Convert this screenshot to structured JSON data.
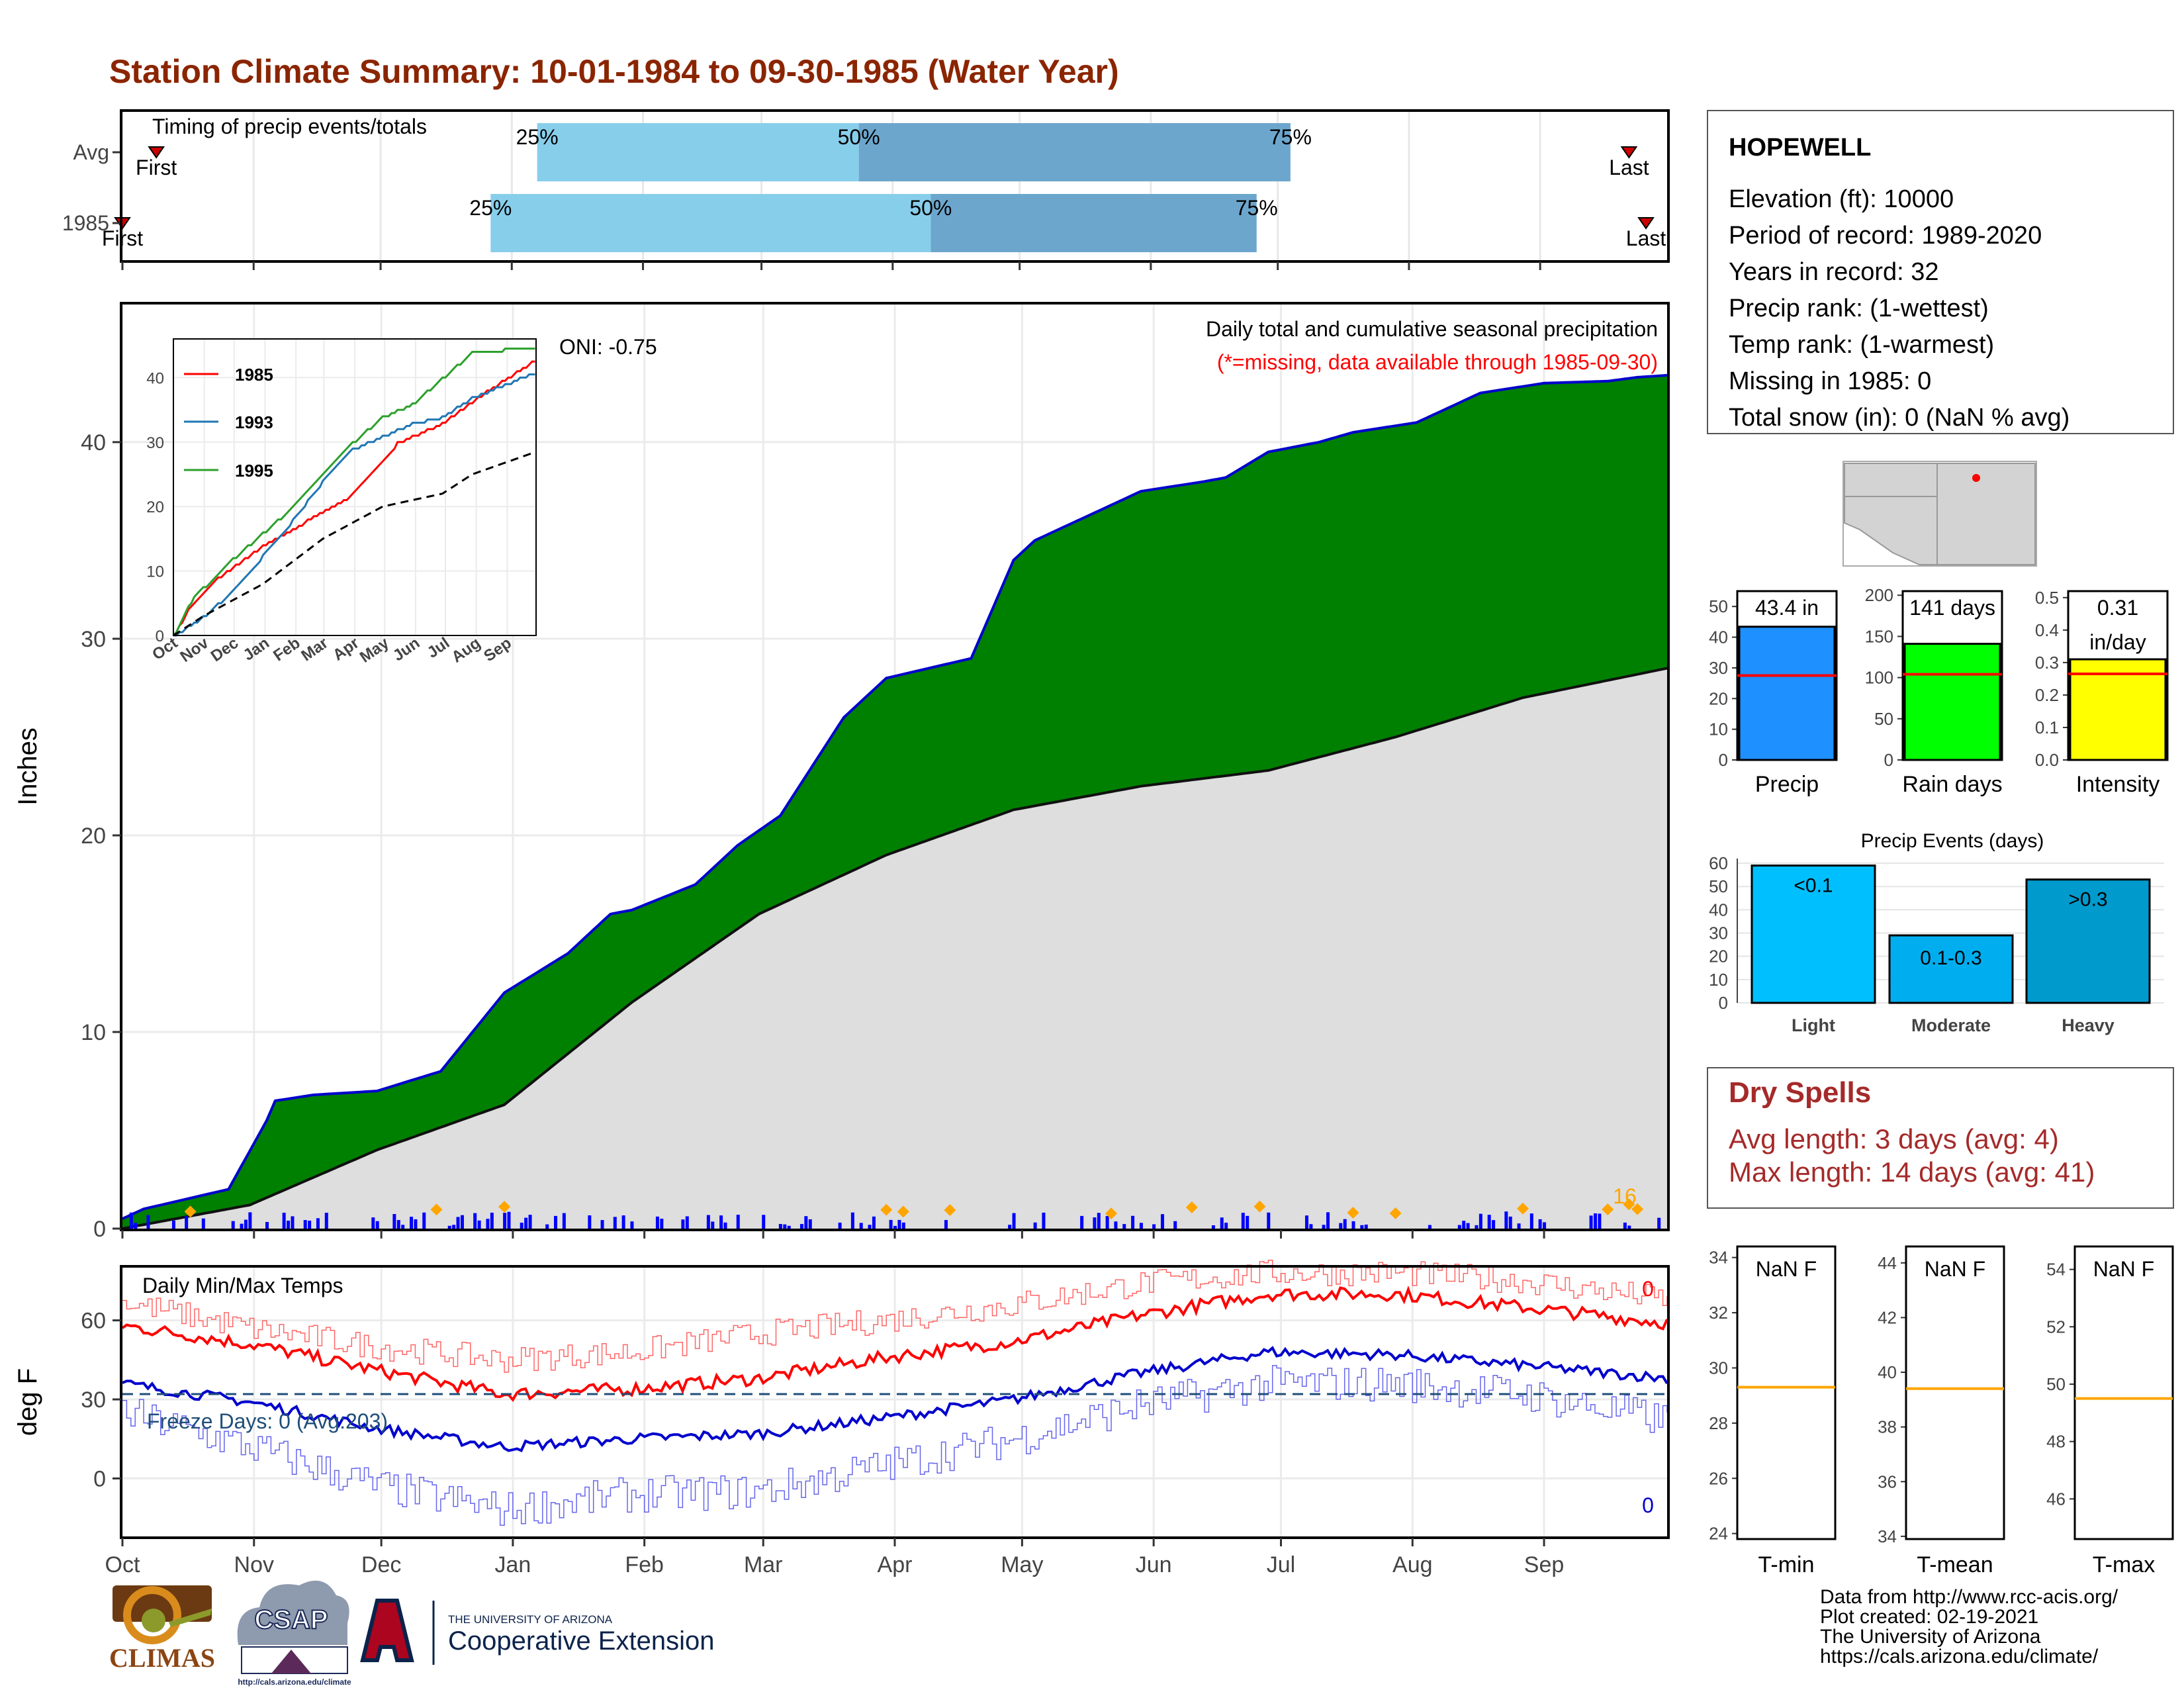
{
  "title": "Station Climate Summary: 10-01-1984 to 09-30-1985 (Water Year)",
  "colors": {
    "title": "#8B2500",
    "precip_fill": "#008000",
    "precip_line": "#0000CD",
    "avg_fill": "#DEDEDE",
    "bar_q1": "#87CEEB",
    "bar_q2": "#6CA6CD",
    "tmax": "#FF0000",
    "tmin": "#0000CD",
    "freeze": "#1F4E79",
    "missing": "#FF0000",
    "marker": "#FFA500",
    "dry": "#A52A2A"
  },
  "timing": {
    "label": "Timing of precip events/totals",
    "rows": [
      {
        "name": "Avg",
        "first_label": "First",
        "last_label": "Last",
        "first_day": 8,
        "last_day": 356,
        "p25": 98,
        "p50": 174,
        "p75": 276,
        "pct_labels": [
          "25%",
          "50%",
          "75%"
        ]
      },
      {
        "name": "1985",
        "first_label": "First",
        "last_label": "Last",
        "first_day": 0,
        "last_day": 360,
        "p25": 87,
        "p50": 191,
        "p75": 268,
        "pct_labels": [
          "25%",
          "50%",
          "75%"
        ]
      }
    ],
    "xlim": [
      0,
      365
    ]
  },
  "station": {
    "name": "HOPEWELL",
    "lines": [
      "Elevation (ft): 10000",
      "Period of record: 1989-2020",
      "Years in record: 32",
      "Precip rank:  (1-wettest)",
      "Temp rank:  (1-warmest)",
      "Missing in 1985: 0",
      "Total snow (in): 0 (NaN % avg)"
    ]
  },
  "main": {
    "ylabel": "Inches",
    "oni": "ONI: -0.75",
    "desc": "Daily total and cumulative seasonal precipitation",
    "missing_note": "(*=missing, data available through 1985-09-30)",
    "count_label": "16",
    "yticks": [
      "0",
      "10",
      "20",
      "30",
      "40"
    ],
    "xticks": [
      "Oct",
      "Nov",
      "Dec",
      "Jan",
      "Feb",
      "Mar",
      "Apr",
      "May",
      "Jun",
      "Jul",
      "Aug",
      "Sep"
    ]
  },
  "inset": {
    "legend": [
      "1985",
      "1993",
      "1995"
    ],
    "yticks": [
      "0",
      "10",
      "20",
      "30",
      "40"
    ],
    "xticks": [
      "Oct",
      "Nov",
      "Dec",
      "Jan",
      "Feb",
      "Mar",
      "Apr",
      "May",
      "Jun",
      "Jul",
      "Aug",
      "Sep"
    ]
  },
  "temps": {
    "title": "Daily Min/Max Temps",
    "ylabel": "deg F",
    "freeze": "Freeze Days: 0 (Avg:203)",
    "max_count": "0",
    "min_count": "0",
    "yticks": [
      "0",
      "30",
      "60"
    ]
  },
  "summary_bars": [
    {
      "label": "Precip",
      "value_label": "43.4 in",
      "value": 43.4,
      "avg": 27.5,
      "yticks": [
        "0",
        "10",
        "20",
        "30",
        "40",
        "50"
      ],
      "ymax": 55,
      "color": "#1E90FF"
    },
    {
      "label": "Rain days",
      "value_label": "141 days",
      "value": 141,
      "avg": 104,
      "yticks": [
        "0",
        "50",
        "100",
        "150",
        "200"
      ],
      "ymax": 205,
      "color": "#00FF00"
    },
    {
      "label": "Intensity",
      "value_label": "0.31",
      "value_label2": "in/day",
      "value": 0.31,
      "avg": 0.265,
      "yticks": [
        "0.0",
        "0.1",
        "0.2",
        "0.3",
        "0.4",
        "0.5"
      ],
      "ymax": 0.52,
      "color": "#FFFF00"
    }
  ],
  "events": {
    "title": "Precip Events (days)",
    "yticks": [
      "0",
      "10",
      "20",
      "30",
      "40",
      "50",
      "60"
    ],
    "bars": [
      {
        "label": "Light",
        "inner": "<0.1",
        "value": 59,
        "color": "#00BFFF"
      },
      {
        "label": "Moderate",
        "inner": "0.1-0.3",
        "value": 29,
        "color": "#00AEEF"
      },
      {
        "label": "Heavy",
        "inner": ">0.3",
        "value": 53,
        "color": "#009ACD"
      }
    ]
  },
  "dry": {
    "title": "Dry Spells",
    "avg_line": "Avg length: 3 days (avg: 4)",
    "max_line": "Max length: 14 days (avg: 41)"
  },
  "temp_panels": [
    {
      "label": "T-min",
      "value": "NaN F",
      "yticks": [
        "24",
        "26",
        "28",
        "30",
        "32",
        "34"
      ],
      "ymin": 23.8,
      "ymax": 34.4,
      "avg": 29.3
    },
    {
      "label": "T-mean",
      "value": "NaN F",
      "yticks": [
        "34",
        "36",
        "38",
        "40",
        "42",
        "44"
      ],
      "ymin": 33.9,
      "ymax": 44.6,
      "avg": 39.4
    },
    {
      "label": "T-max",
      "value": "NaN F",
      "yticks": [
        "46",
        "48",
        "50",
        "52",
        "54"
      ],
      "ymin": 44.6,
      "ymax": 54.8,
      "avg": 49.5
    }
  ],
  "footer": [
    "Data from http://www.rcc-acis.org/",
    "Plot created: 02-19-2021",
    "The University of Arizona",
    "https://cals.arizona.edu/climate/"
  ],
  "logos": {
    "climas": "CLIMAS",
    "csap": "CSAP",
    "csap_url": "http://cals.arizona.edu/climate",
    "ua_small": "THE UNIVERSITY OF ARIZONA",
    "ua_big": "Cooperative Extension"
  },
  "chart_data": [
    {
      "type": "area",
      "title": "Daily total and cumulative seasonal precipitation",
      "ylabel": "Inches",
      "xlabel": "",
      "ylim": [
        0,
        47
      ],
      "x_unit": "day of water year",
      "series": [
        {
          "name": "1985",
          "x": [
            0,
            5,
            25,
            34,
            36,
            45,
            60,
            75,
            90,
            105,
            115,
            120,
            135,
            145,
            155,
            170,
            180,
            190,
            200,
            210,
            215,
            225,
            240,
            255,
            260,
            270,
            282,
            290,
            305,
            320,
            335,
            350,
            357,
            364
          ],
          "y": [
            0.5,
            1.0,
            2.0,
            5.5,
            6.5,
            6.8,
            7.0,
            8.0,
            12.0,
            14.0,
            16.0,
            16.2,
            17.5,
            19.5,
            21.0,
            26.0,
            28.0,
            28.5,
            29.0,
            34.0,
            35.0,
            36.0,
            37.5,
            38.0,
            38.2,
            39.5,
            40.0,
            40.5,
            41.0,
            42.5,
            43.0,
            43.1,
            43.3,
            43.4
          ]
        },
        {
          "name": "Average",
          "x": [
            0,
            30,
            60,
            90,
            120,
            150,
            180,
            210,
            240,
            270,
            300,
            330,
            364
          ],
          "y": [
            0,
            1.2,
            4.0,
            6.3,
            11.5,
            16.0,
            19.0,
            21.3,
            22.5,
            23.3,
            25.0,
            27.0,
            28.5
          ]
        }
      ]
    },
    {
      "type": "line",
      "title": "",
      "ylim": [
        0,
        46
      ],
      "series": [
        {
          "name": "1985",
          "x": [
            0,
            15,
            45,
            90,
            135,
            180,
            225,
            270,
            315,
            364
          ],
          "y": [
            0,
            4,
            9,
            14,
            18,
            22,
            30,
            33,
            38,
            43
          ]
        },
        {
          "name": "1993",
          "x": [
            0,
            30,
            60,
            120,
            150,
            180,
            210,
            240,
            270,
            300,
            364
          ],
          "y": [
            0,
            3,
            7,
            18,
            24,
            29,
            31,
            33,
            34,
            37,
            41
          ]
        },
        {
          "name": "1995",
          "x": [
            0,
            20,
            60,
            90,
            120,
            150,
            180,
            210,
            240,
            270,
            300,
            364
          ],
          "y": [
            0,
            6,
            12,
            16,
            20,
            25,
            30,
            34,
            36,
            40,
            44,
            45
          ]
        },
        {
          "name": "",
          "x": [
            0,
            30,
            90,
            150,
            210,
            240,
            270,
            300,
            364
          ],
          "y": [
            0,
            3,
            8,
            15,
            20,
            21,
            22,
            25,
            28.5
          ]
        }
      ]
    },
    {
      "type": "line",
      "title": "Daily Min/Max Temps",
      "ylabel": "deg F",
      "ylim": [
        -22,
        80
      ],
      "x": [
        0,
        30,
        60,
        90,
        120,
        150,
        180,
        210,
        240,
        270,
        300,
        330,
        364
      ],
      "series": [
        {
          "name": "Avg Max",
          "y": [
            58,
            51,
            41,
            32,
            34,
            38,
            46,
            52,
            62,
            70,
            70,
            65,
            59
          ]
        },
        {
          "name": "Avg Min",
          "y": [
            36,
            29,
            19,
            12,
            15,
            17,
            23,
            30,
            40,
            48,
            47,
            43,
            38
          ]
        },
        {
          "name": "Daily Max",
          "y": [
            67,
            57,
            50,
            45,
            48,
            55,
            60,
            66,
            74,
            78,
            78,
            75,
            68
          ]
        },
        {
          "name": "Daily Min",
          "y": [
            25,
            12,
            -3,
            -12,
            -6,
            -5,
            5,
            15,
            28,
            36,
            36,
            32,
            22
          ]
        }
      ],
      "freeze_line": 32
    }
  ]
}
